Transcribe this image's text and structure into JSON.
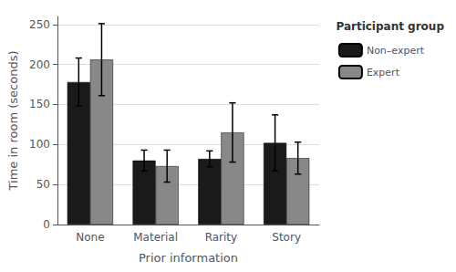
{
  "chart_data": {
    "type": "bar",
    "xlabel": "Prior information",
    "ylabel": "Time in room (seconds)",
    "categories": [
      "None",
      "Material",
      "Rarity",
      "Story"
    ],
    "series": [
      {
        "name": "Non–expert",
        "color": "#1a1a1a",
        "values": [
          178,
          80,
          82,
          102
        ],
        "error": [
          30,
          13,
          10,
          35
        ]
      },
      {
        "name": "Expert",
        "color": "#888888",
        "values": [
          206,
          73,
          115,
          83
        ],
        "error": [
          45,
          20,
          37,
          20
        ]
      }
    ],
    "legend_title": "Participant group",
    "legend": "upper right",
    "ylim": [
      0,
      260
    ],
    "yticks": [
      0,
      50,
      100,
      150,
      200,
      250
    ],
    "grid": true
  }
}
